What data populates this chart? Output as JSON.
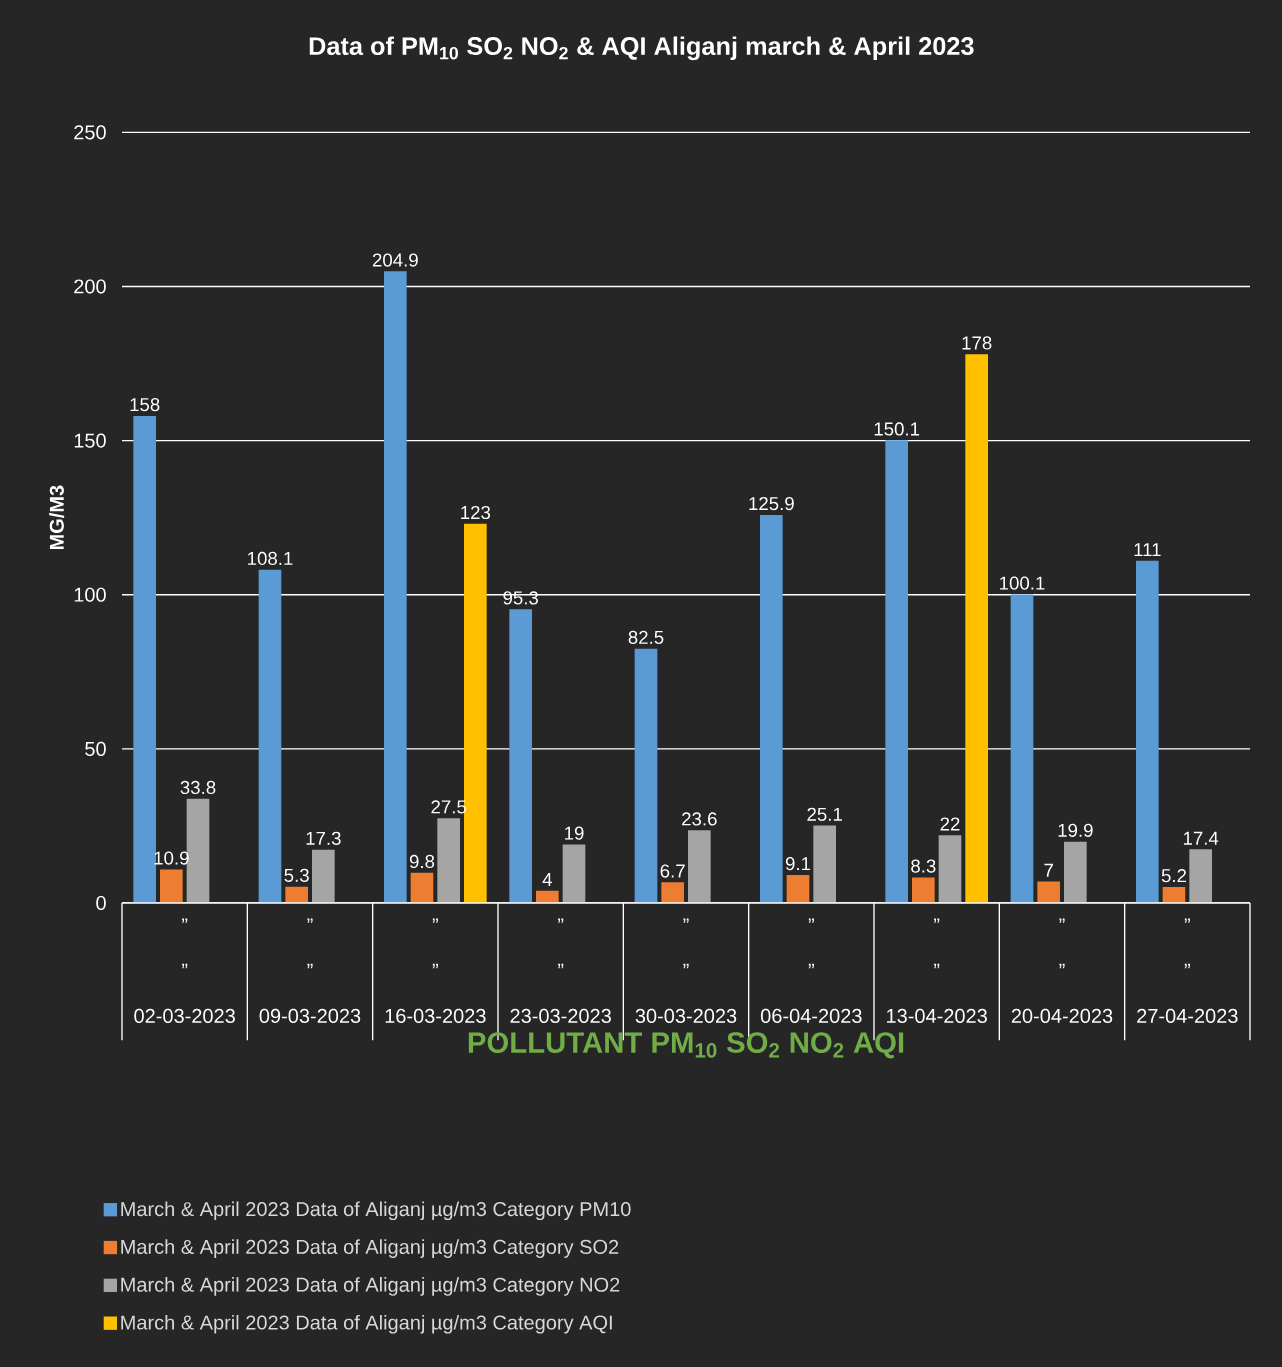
{
  "chart_data": {
    "type": "bar",
    "title": "Data of PM$_{10}$ SO$_{2}$ NO$_{2}$ & AQI Aliganj march & April 2023",
    "xlabel": "POLLUTANT PM$_{10}$ SO$_{2}$ NO$_{2}$ AQI",
    "ylabel": "MG/M3",
    "categories": [
      "”\n”\n02-03-2023",
      "”\n”\n09-03-2023",
      "”\n”\n16-03-2023",
      "”\n”\n23-03-2023",
      "”\n”\n30-03-2023",
      "”\n”\n06-04-2023",
      "”\n”\n13-04-2023",
      "”\n”\n20-04-2023",
      "”\n”\n27-04-2023"
    ],
    "series": [
      {
        "name": "March & April 2023 Data of  Aliganj µg/m3 Category PM10",
        "color": "#5b9bd5",
        "values": [
          158,
          108.1,
          204.9,
          95.3,
          82.5,
          125.9,
          150.1,
          100.1,
          111
        ]
      },
      {
        "name": "March & April 2023 Data of Aliganj µg/m3 Category SO2",
        "color": "#ed7d31",
        "values": [
          10.9,
          5.3,
          9.8,
          4,
          6.7,
          9.1,
          8.3,
          7,
          5.2
        ]
      },
      {
        "name": "March & April 2023 Data of  Aliganj µg/m3 Category NO2",
        "color": "#a5a5a5",
        "values": [
          33.8,
          17.3,
          27.5,
          19,
          23.6,
          25.1,
          22,
          19.9,
          17.4
        ]
      },
      {
        "name": "March & April 2023 Data of  Aliganj µg/m3 Category AQI",
        "color": "#ffc000",
        "values": [
          null,
          null,
          123,
          null,
          null,
          null,
          178,
          null,
          null
        ]
      }
    ],
    "ylim": [
      0,
      250
    ],
    "yticks": [
      0,
      50,
      100,
      150,
      200,
      250
    ],
    "grid": "y",
    "legend": "bottom",
    "data_labels": true
  }
}
